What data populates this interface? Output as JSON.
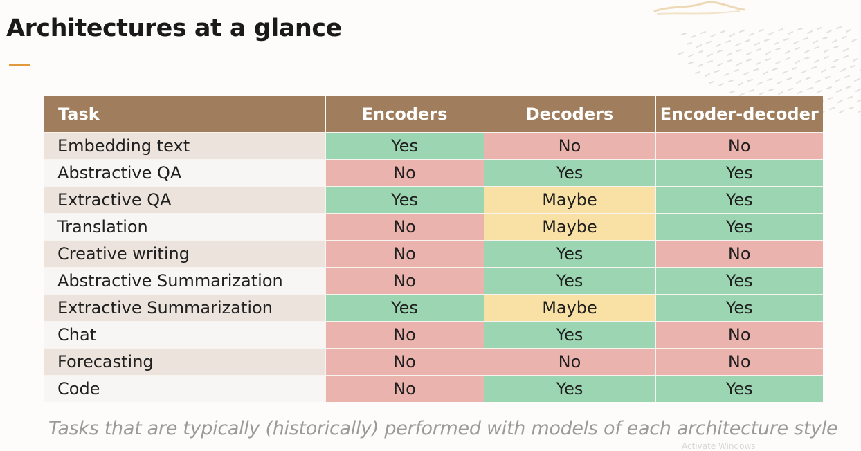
{
  "slide": {
    "title": "Architectures at a glance",
    "caption": "Tasks that are typically (historically) performed with models of each architecture style",
    "watermark": "Activate Windows",
    "accent_color": "#e09a3b"
  },
  "table": {
    "headers": [
      "Task",
      "Encoders",
      "Decoders",
      "Encoder-decoder"
    ],
    "rows": [
      {
        "task": "Embedding text",
        "values": [
          "Yes",
          "No",
          "No"
        ]
      },
      {
        "task": "Abstractive QA",
        "values": [
          "No",
          "Yes",
          "Yes"
        ]
      },
      {
        "task": "Extractive QA",
        "values": [
          "Yes",
          "Maybe",
          "Yes"
        ]
      },
      {
        "task": "Translation",
        "values": [
          "No",
          "Maybe",
          "Yes"
        ]
      },
      {
        "task": "Creative writing",
        "values": [
          "No",
          "Yes",
          "No"
        ]
      },
      {
        "task": "Abstractive Summarization",
        "values": [
          "No",
          "Yes",
          "Yes"
        ]
      },
      {
        "task": "Extractive Summarization",
        "values": [
          "Yes",
          "Maybe",
          "Yes"
        ]
      },
      {
        "task": "Chat",
        "values": [
          "No",
          "Yes",
          "No"
        ]
      },
      {
        "task": "Forecasting",
        "values": [
          "No",
          "No",
          "No"
        ]
      },
      {
        "task": "Code",
        "values": [
          "No",
          "Yes",
          "Yes"
        ]
      }
    ],
    "value_colors": {
      "Yes": "#9bd5b1",
      "No": "#ebb3ad",
      "Maybe": "#f9e1a5"
    },
    "header_color": "#a07d5c"
  }
}
